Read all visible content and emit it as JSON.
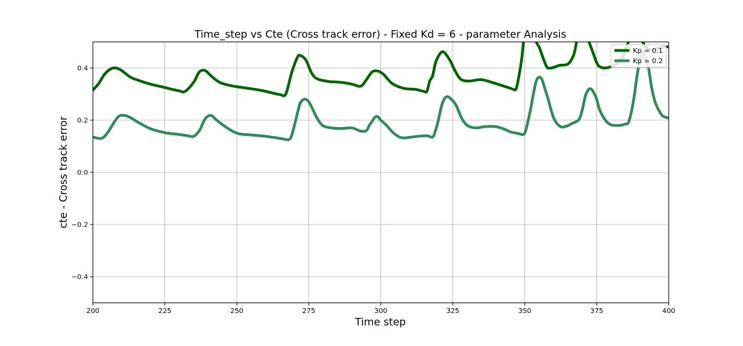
{
  "chart_data": {
    "type": "line",
    "title": "Time_step vs Cte (Cross track error) - Fixed Kd = 6 - parameter Analysis",
    "xlabel": "Time step",
    "ylabel": "cte - Cross track error",
    "xlim": [
      200,
      400
    ],
    "ylim": [
      -0.5,
      0.5
    ],
    "xticks": [
      200,
      225,
      250,
      275,
      300,
      325,
      350,
      375,
      400
    ],
    "yticks": [
      -0.4,
      -0.2,
      0.0,
      0.2,
      0.4
    ],
    "ytick_labels": [
      "−0.4",
      "−0.2",
      "0.0",
      "0.2",
      "0.4"
    ],
    "grid": true,
    "legend_position": "top-right",
    "series": [
      {
        "name": "Kp = 0.1",
        "color": "#006400",
        "x": [
          200,
          202,
          204,
          206,
          208,
          210,
          213,
          216,
          220,
          225,
          230,
          232,
          235,
          237,
          239,
          241,
          244,
          248,
          252,
          258,
          262,
          265,
          267,
          269,
          271,
          272,
          274,
          276,
          278,
          282,
          286,
          290,
          293,
          295,
          297,
          299,
          301,
          304,
          308,
          312,
          315,
          316,
          317,
          318,
          319,
          320,
          321,
          322,
          324,
          326,
          328,
          331,
          335,
          340,
          345,
          346,
          347,
          348,
          349,
          350,
          351,
          352,
          353,
          354,
          355,
          356,
          357,
          358,
          360,
          362,
          365,
          367,
          368,
          369,
          370,
          371,
          372,
          373,
          374,
          375,
          376,
          378,
          381,
          383,
          384,
          385,
          386,
          387,
          388,
          389,
          390,
          391,
          392,
          393,
          394,
          395,
          396,
          397,
          398,
          399,
          400
        ],
        "y": [
          0.315,
          0.34,
          0.375,
          0.395,
          0.4,
          0.39,
          0.365,
          0.352,
          0.338,
          0.325,
          0.312,
          0.31,
          0.345,
          0.385,
          0.39,
          0.37,
          0.345,
          0.332,
          0.325,
          0.315,
          0.305,
          0.298,
          0.3,
          0.38,
          0.44,
          0.448,
          0.43,
          0.38,
          0.358,
          0.348,
          0.345,
          0.338,
          0.33,
          0.355,
          0.385,
          0.388,
          0.375,
          0.34,
          0.322,
          0.318,
          0.31,
          0.31,
          0.35,
          0.37,
          0.42,
          0.445,
          0.46,
          0.46,
          0.43,
          0.385,
          0.355,
          0.35,
          0.355,
          0.34,
          0.322,
          0.318,
          0.32,
          0.37,
          0.44,
          0.55,
          0.6,
          0.58,
          0.54,
          0.5,
          0.48,
          0.45,
          0.42,
          0.4,
          0.402,
          0.41,
          0.415,
          0.45,
          0.5,
          0.55,
          0.6,
          0.55,
          0.51,
          0.48,
          0.45,
          0.42,
          0.405,
          0.4,
          0.41,
          0.425,
          0.44,
          0.47,
          0.5,
          0.53,
          0.56,
          0.55,
          0.52,
          0.5,
          0.48,
          0.47,
          0.47,
          0.472,
          0.475,
          0.478,
          0.48,
          0.482,
          0.48
        ]
      },
      {
        "name": "Kp = 0.2",
        "color": "#2e8b57",
        "x": [
          200,
          203,
          205,
          207,
          209,
          211,
          213,
          216,
          220,
          225,
          230,
          233,
          235,
          237,
          239,
          241,
          243,
          246,
          250,
          255,
          260,
          265,
          268,
          269,
          270,
          271,
          272,
          273,
          274,
          275,
          276,
          278,
          280,
          283,
          286,
          290,
          293,
          295,
          296,
          297,
          298,
          299,
          300,
          302,
          304,
          306,
          308,
          312,
          316,
          318,
          319,
          320,
          321,
          322,
          323,
          324,
          326,
          328,
          330,
          333,
          336,
          340,
          343,
          345,
          348,
          349,
          350,
          351,
          352,
          353,
          354,
          355,
          356,
          357,
          358,
          360,
          362,
          364,
          367,
          368,
          369,
          370,
          371,
          372,
          373,
          374,
          375,
          376,
          378,
          380,
          383,
          385,
          386,
          387,
          388,
          389,
          390,
          391,
          392,
          393,
          394,
          395,
          396,
          397,
          398,
          400
        ],
        "y": [
          0.135,
          0.13,
          0.15,
          0.185,
          0.215,
          0.218,
          0.21,
          0.19,
          0.167,
          0.152,
          0.145,
          0.14,
          0.138,
          0.16,
          0.205,
          0.218,
          0.2,
          0.175,
          0.15,
          0.143,
          0.138,
          0.13,
          0.125,
          0.14,
          0.18,
          0.225,
          0.265,
          0.278,
          0.28,
          0.27,
          0.25,
          0.205,
          0.178,
          0.17,
          0.168,
          0.17,
          0.158,
          0.16,
          0.18,
          0.195,
          0.212,
          0.213,
          0.2,
          0.18,
          0.155,
          0.138,
          0.132,
          0.137,
          0.14,
          0.135,
          0.16,
          0.2,
          0.25,
          0.28,
          0.29,
          0.285,
          0.26,
          0.21,
          0.18,
          0.17,
          0.175,
          0.175,
          0.165,
          0.155,
          0.148,
          0.145,
          0.15,
          0.19,
          0.24,
          0.3,
          0.35,
          0.365,
          0.355,
          0.32,
          0.285,
          0.21,
          0.178,
          0.175,
          0.19,
          0.195,
          0.205,
          0.24,
          0.29,
          0.315,
          0.32,
          0.305,
          0.28,
          0.24,
          0.2,
          0.182,
          0.18,
          0.185,
          0.19,
          0.23,
          0.29,
          0.37,
          0.43,
          0.455,
          0.44,
          0.4,
          0.33,
          0.28,
          0.25,
          0.23,
          0.215,
          0.208
        ]
      }
    ]
  }
}
